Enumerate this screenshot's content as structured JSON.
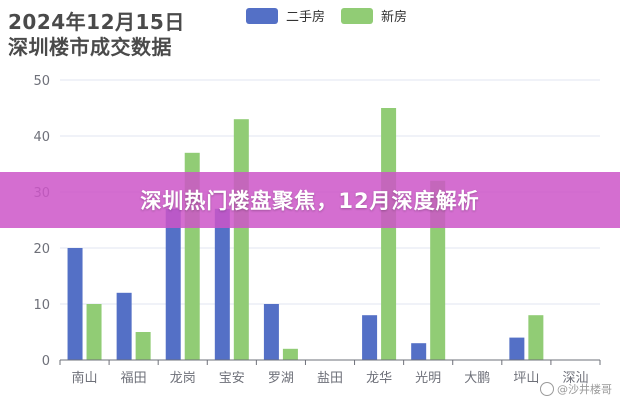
{
  "banner": {
    "text": "深圳热门楼盘聚焦，12月深度解析"
  },
  "watermark": {
    "text": "@沙井楼哥"
  },
  "chart_data": {
    "type": "bar",
    "title_lines": [
      "2024年12月15日",
      "深圳楼市成交数据"
    ],
    "categories": [
      "南山",
      "福田",
      "龙岗",
      "宝安",
      "罗湖",
      "盐田",
      "龙华",
      "光明",
      "大鹏",
      "坪山",
      "深汕"
    ],
    "series": [
      {
        "name": "二手房",
        "color": "#5470c6",
        "values": [
          20,
          12,
          27,
          27,
          10,
          0,
          8,
          3,
          0,
          4,
          0
        ]
      },
      {
        "name": "新房",
        "color": "#91cc75",
        "values": [
          10,
          5,
          37,
          43,
          2,
          0,
          45,
          32,
          0,
          8,
          0
        ]
      }
    ],
    "yticks": [
      0,
      10,
      20,
      30,
      40,
      50
    ],
    "ylim": [
      0,
      50
    ],
    "grid": true,
    "legend_position": "top"
  }
}
